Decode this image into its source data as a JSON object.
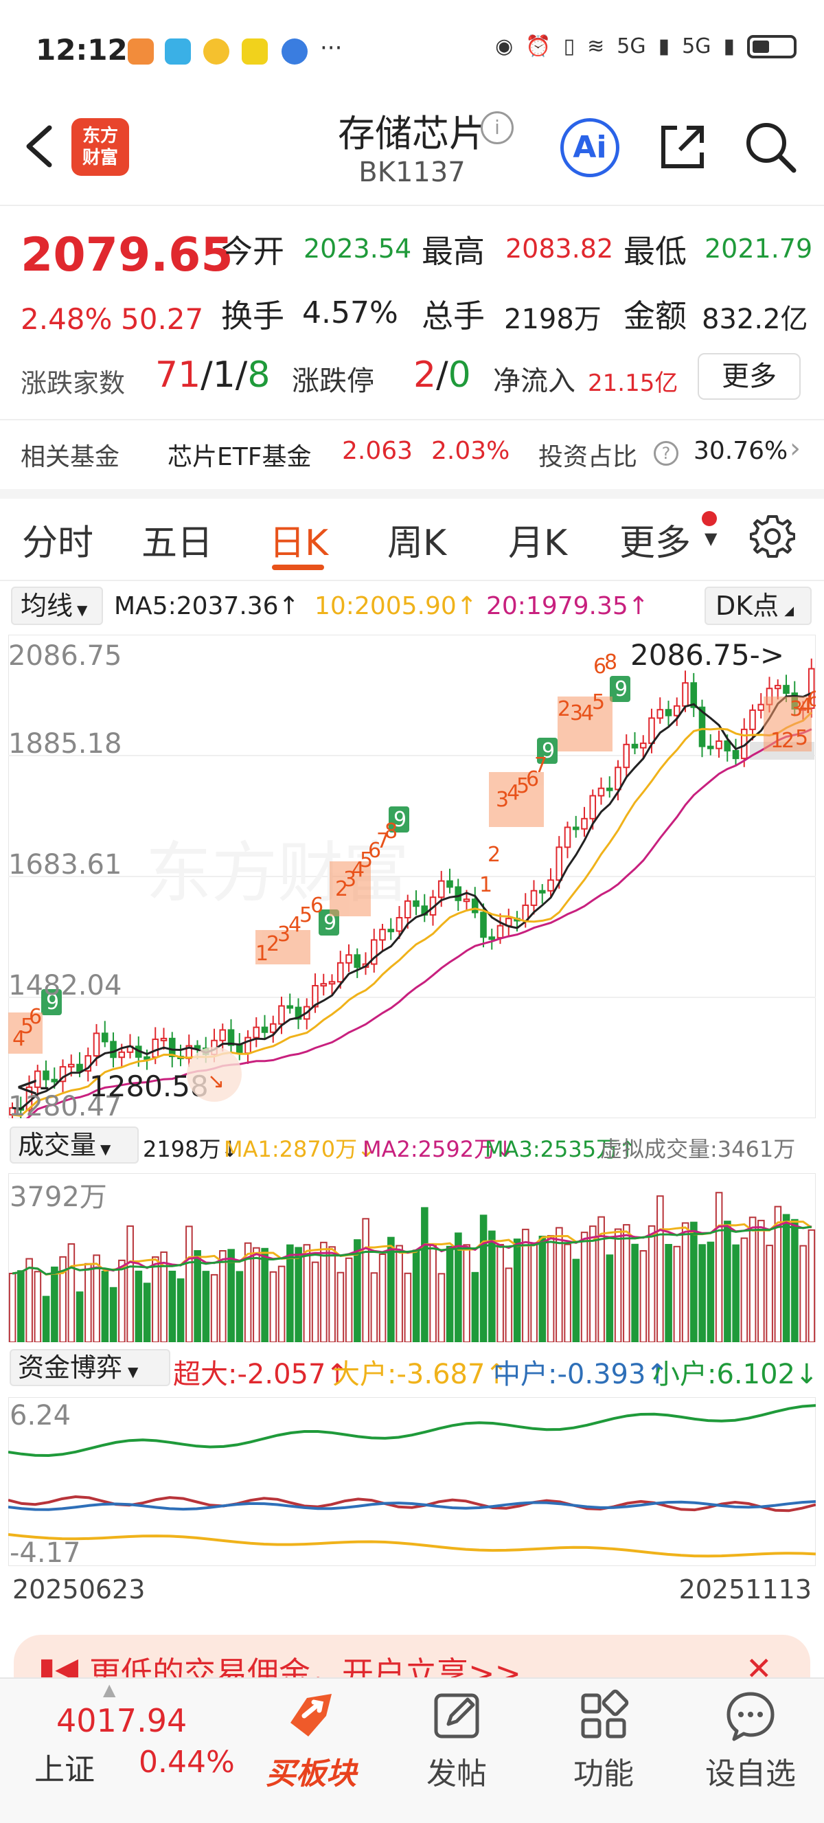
{
  "status_bar": {
    "time": "12:12",
    "more": "···",
    "signal_1": "5G",
    "signal_2": "5G"
  },
  "header": {
    "title": "存储芯片",
    "code": "BK1137",
    "logo_text": "东方\n财富",
    "ai_label": "Ai"
  },
  "quote": {
    "price": "2079.65",
    "change_pct": "2.48%",
    "change_abs": "50.27",
    "open_label": "今开",
    "open": "2023.54",
    "high_label": "最高",
    "high": "2083.82",
    "low_label": "最低",
    "low": "2021.79",
    "turnover_label": "换手",
    "turnover": "4.57%",
    "volume_label": "总手",
    "volume": "2198万",
    "amount_label": "金额",
    "amount": "832.2亿",
    "breadth_label": "涨跌家数",
    "breadth_up": "71",
    "breadth_flat": "1",
    "breadth_down": "8",
    "sep": "/",
    "limit_label": "涨跌停",
    "limit_up": "2",
    "limit_down": "0",
    "netflow_label": "净流入",
    "netflow": "21.15亿",
    "more_button": "更多"
  },
  "fund": {
    "label": "相关基金",
    "name": "芯片ETF基金",
    "price": "2.063",
    "pct": "2.03%",
    "weight_label": "投资占比",
    "weight": "30.76%",
    "help": "?"
  },
  "tabs": [
    "分时",
    "五日",
    "日K",
    "周K",
    "月K",
    "更多"
  ],
  "active_tab": "日K",
  "ma_legend": {
    "select": "均线",
    "ma5": "MA5:2037.36↑",
    "ma10": "10:2005.90↑",
    "ma20": "20:1979.35↑",
    "dk": "DK点"
  },
  "kline_labels": {
    "y_top": "2086.75",
    "y_2": "1885.18",
    "y_3": "1683.61",
    "y_4": "1482.04",
    "y_bottom": "1280.47",
    "max_marker": "2086.75->",
    "min_marker": "1280.58"
  },
  "volume_legend": {
    "select": "成交量",
    "vol": "2198万↓",
    "ma1": "MA1:2870万↓",
    "ma2": "MA2:2592万↓",
    "ma3": "MA3:2535万↑",
    "virtual": "虚拟成交量:3461万",
    "y_top": "3792万"
  },
  "flow_legend": {
    "select": "资金博弈",
    "super": "超大:-2.057↑",
    "large": "大户:-3.687↑",
    "mid": "中户:-0.393↑",
    "small": "小户:6.102↓",
    "y_top": "6.24",
    "y_bottom": "-4.17"
  },
  "dates": {
    "start": "20250623",
    "end": "20251113"
  },
  "promo": {
    "text": "更低的交易佣金，开户立享>>",
    "close": "✕"
  },
  "bottom_nav": {
    "index_value": "4017.94",
    "index_name": "上证",
    "index_pct": "0.44%",
    "buy": "买板块",
    "post": "发帖",
    "features": "功能",
    "watchlist": "设自选"
  },
  "colors": {
    "up": "#e0282e",
    "down": "#1f9a3a",
    "ma5": "#222222",
    "ma10": "#f0b21a",
    "ma20": "#c8207e",
    "accent": "#e8521a",
    "link_blue": "#2a63e8"
  },
  "icons": [
    "back-icon",
    "info-icon",
    "ai-icon",
    "share-icon",
    "search-icon",
    "settings-icon",
    "help-icon",
    "close-icon",
    "post-icon",
    "features-icon",
    "watchlist-icon"
  ]
}
